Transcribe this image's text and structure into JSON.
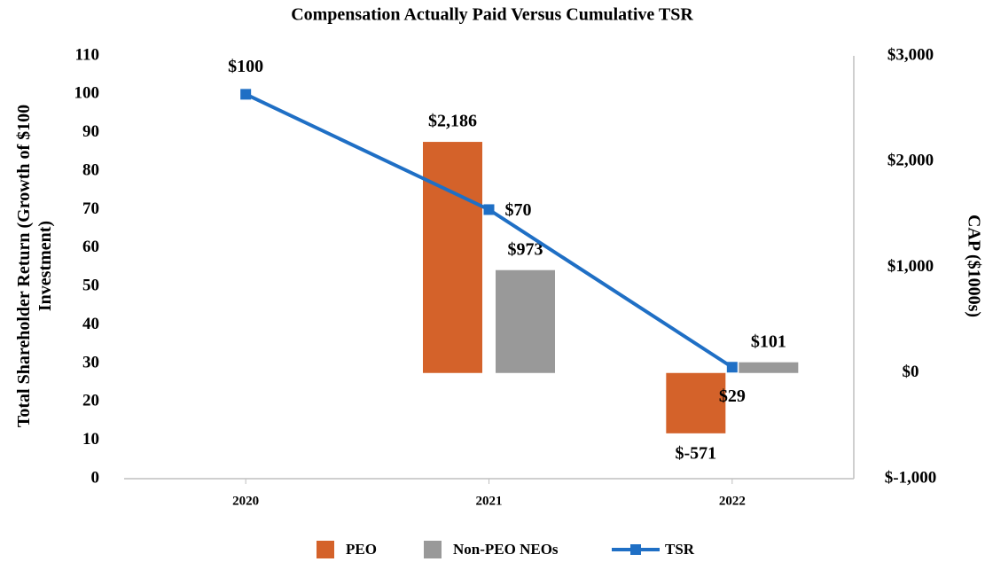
{
  "chart_data": {
    "type": "bar_line",
    "title": "Compensation Actually Paid Versus Cumulative TSR",
    "ylabel": "Total Shareholder Return (Growth of $100 Investment)",
    "y2label": "CAP ($1000s)",
    "categories": [
      "2020",
      "2021",
      "2022"
    ],
    "ylim": [
      0,
      110
    ],
    "yticks": [
      0,
      10,
      20,
      30,
      40,
      50,
      60,
      70,
      80,
      90,
      100,
      110
    ],
    "y2lim": [
      -1000,
      3000
    ],
    "y2ticks": [
      {
        "value": -1000,
        "label": "$-1,000"
      },
      {
        "value": 0,
        "label": "$0"
      },
      {
        "value": 1000,
        "label": "$1,000"
      },
      {
        "value": 2000,
        "label": "$2,000"
      },
      {
        "value": 3000,
        "label": "$3,000"
      }
    ],
    "grid": false,
    "legend": "bottom",
    "series": [
      {
        "name": "PEO",
        "type": "bar",
        "axis": "y2",
        "color": "#d4622a",
        "values": [
          null,
          2186,
          -571
        ],
        "value_labels": [
          null,
          "$2,186",
          "$-571"
        ]
      },
      {
        "name": "Non-PEO NEOs",
        "type": "bar",
        "axis": "y2",
        "color": "#999999",
        "values": [
          null,
          973,
          101
        ],
        "value_labels": [
          null,
          "$973",
          "$101"
        ]
      },
      {
        "name": "TSR",
        "type": "line",
        "axis": "y",
        "color": "#1f6fc5",
        "values": [
          100,
          70,
          29
        ],
        "value_labels": [
          "$100",
          "$70",
          "$29"
        ]
      }
    ]
  }
}
